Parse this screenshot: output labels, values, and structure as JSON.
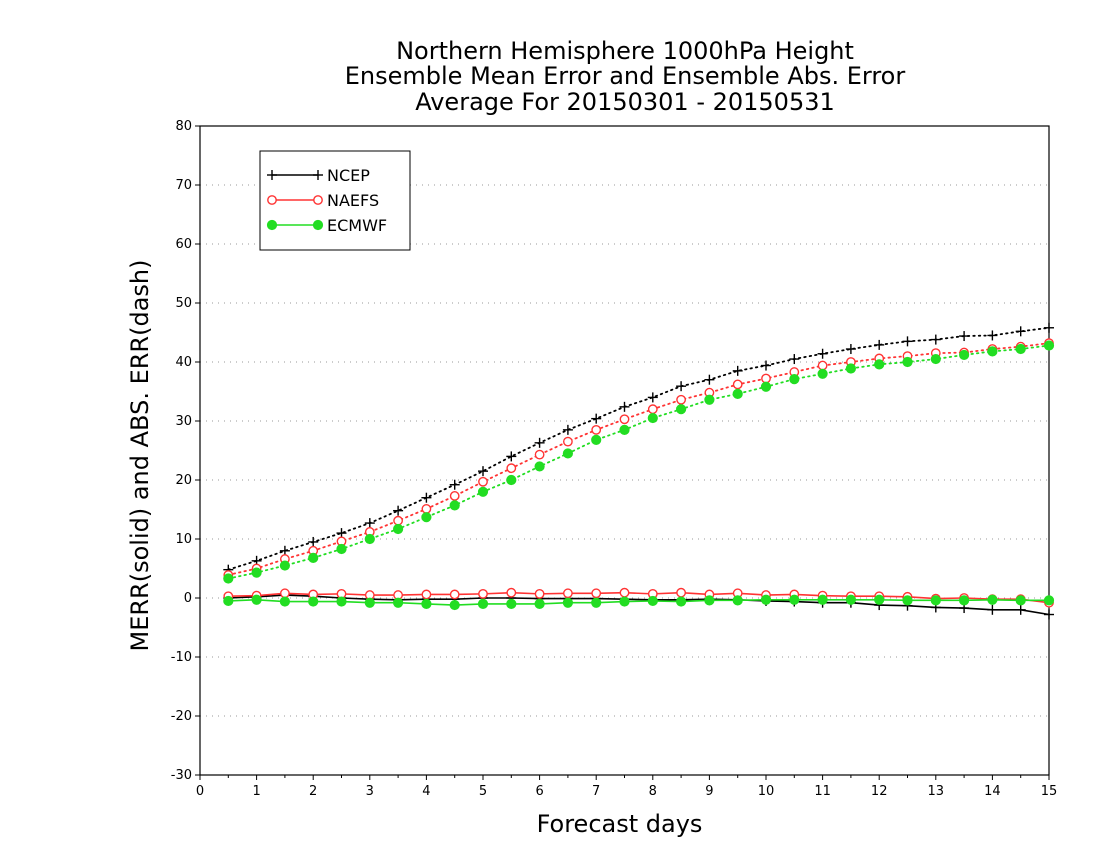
{
  "titles": {
    "line1": "Northern Hemisphere 1000hPa Height",
    "line2": "Ensemble Mean Error and Ensemble Abs. Error",
    "line3": "Average For 20150301 - 20150531"
  },
  "chart_data": {
    "type": "line",
    "xlabel": "Forecast days",
    "ylabel": "MERR(solid) and ABS. ERR(dash)",
    "xlim": [
      0,
      15
    ],
    "ylim": [
      -30,
      80
    ],
    "xticks": [
      0,
      1,
      2,
      3,
      4,
      5,
      6,
      7,
      8,
      9,
      10,
      11,
      12,
      13,
      14,
      15
    ],
    "yticks": [
      -30,
      -20,
      -10,
      0,
      10,
      20,
      30,
      40,
      50,
      60,
      70,
      80
    ],
    "grid": "horizontal dotted",
    "legend_position": "top-left",
    "x": [
      0.5,
      1.0,
      1.5,
      2.0,
      2.5,
      3.0,
      3.5,
      4.0,
      4.5,
      5.0,
      5.5,
      6.0,
      6.5,
      7.0,
      7.5,
      8.0,
      8.5,
      9.0,
      9.5,
      10.0,
      10.5,
      11.0,
      11.5,
      12.0,
      12.5,
      13.0,
      13.5,
      14.0,
      14.5,
      15.0
    ],
    "series": [
      {
        "name": "NCEP",
        "color": "#000000",
        "marker": "plus",
        "merr": [
          0.0,
          0.2,
          0.5,
          0.3,
          0.0,
          -0.2,
          -0.3,
          -0.2,
          -0.2,
          0.0,
          0.0,
          -0.1,
          -0.1,
          -0.1,
          -0.2,
          -0.3,
          -0.3,
          -0.2,
          -0.3,
          -0.5,
          -0.6,
          -0.8,
          -0.8,
          -1.2,
          -1.3,
          -1.6,
          -1.7,
          -2.0,
          -2.0,
          -2.8
        ],
        "abs_err": [
          4.8,
          6.3,
          8.0,
          9.5,
          11.0,
          12.7,
          14.8,
          17.0,
          19.2,
          21.5,
          24.0,
          26.3,
          28.5,
          30.4,
          32.4,
          34.0,
          35.9,
          37.0,
          38.5,
          39.4,
          40.5,
          41.4,
          42.2,
          42.9,
          43.5,
          43.8,
          44.4,
          44.5,
          45.2,
          45.8
        ]
      },
      {
        "name": "NAEFS",
        "color": "#ff3333",
        "marker": "open-circle",
        "merr": [
          0.3,
          0.4,
          0.8,
          0.6,
          0.7,
          0.5,
          0.5,
          0.6,
          0.6,
          0.7,
          0.9,
          0.7,
          0.8,
          0.8,
          0.9,
          0.7,
          0.9,
          0.6,
          0.8,
          0.5,
          0.6,
          0.4,
          0.3,
          0.3,
          0.2,
          -0.1,
          0.0,
          -0.2,
          -0.2,
          -0.8
        ],
        "abs_err": [
          3.9,
          5.0,
          6.6,
          8.0,
          9.6,
          11.2,
          13.1,
          15.1,
          17.3,
          19.7,
          22.0,
          24.3,
          26.5,
          28.5,
          30.3,
          32.0,
          33.6,
          34.8,
          36.2,
          37.2,
          38.3,
          39.4,
          40.0,
          40.6,
          41.0,
          41.5,
          41.6,
          42.2,
          42.6,
          43.2
        ]
      },
      {
        "name": "ECMWF",
        "color": "#22dd22",
        "marker": "filled-circle",
        "merr": [
          -0.5,
          -0.3,
          -0.6,
          -0.6,
          -0.6,
          -0.8,
          -0.8,
          -1.0,
          -1.2,
          -1.0,
          -1.0,
          -1.0,
          -0.8,
          -0.8,
          -0.6,
          -0.5,
          -0.6,
          -0.4,
          -0.4,
          -0.3,
          -0.3,
          -0.3,
          -0.3,
          -0.3,
          -0.4,
          -0.4,
          -0.4,
          -0.3,
          -0.4,
          -0.4
        ],
        "abs_err": [
          3.3,
          4.3,
          5.5,
          6.8,
          8.3,
          10.0,
          11.7,
          13.7,
          15.7,
          18.0,
          20.0,
          22.3,
          24.5,
          26.8,
          28.5,
          30.5,
          32.0,
          33.6,
          34.6,
          35.8,
          37.1,
          38.0,
          38.9,
          39.6,
          40.0,
          40.5,
          41.2,
          41.8,
          42.2,
          42.8
        ]
      }
    ]
  }
}
